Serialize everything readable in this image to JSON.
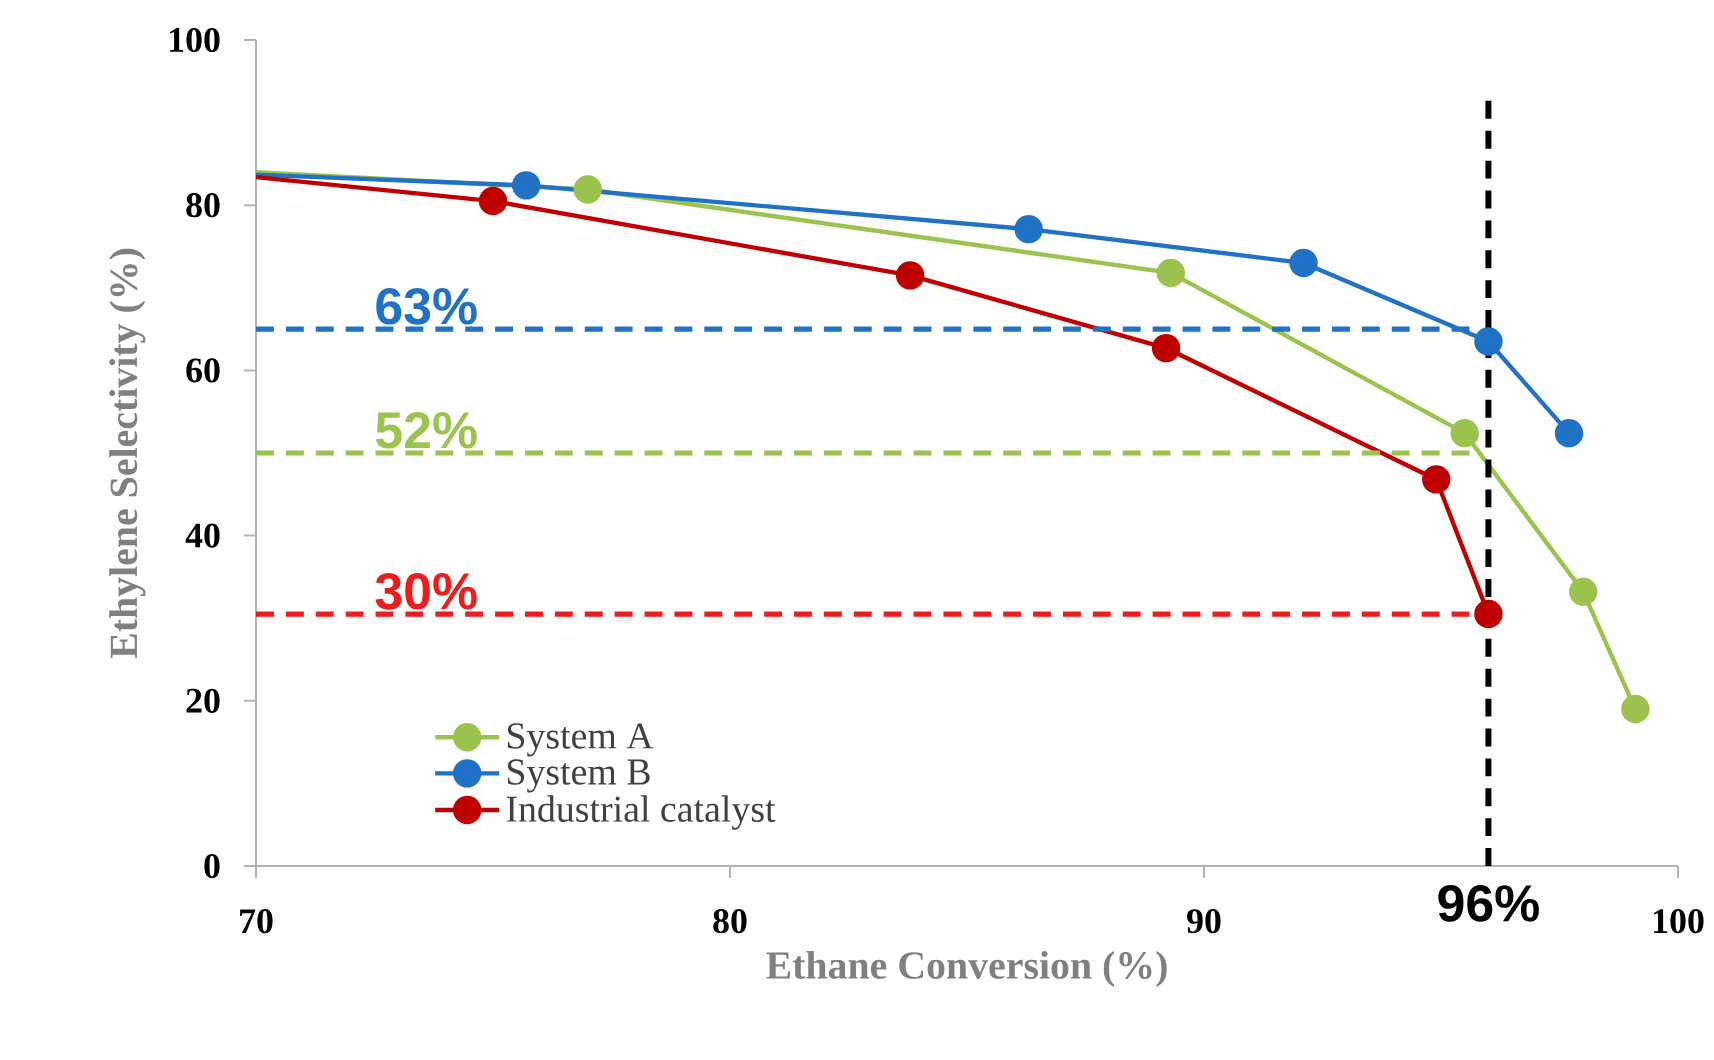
{
  "chart_data": {
    "type": "line",
    "xlabel": "Ethane Conversion (%)",
    "ylabel": "Ethylene Selectivity (%)",
    "xlim": [
      70,
      100
    ],
    "ylim": [
      0,
      100
    ],
    "xticks": [
      70,
      80,
      90,
      100
    ],
    "yticks": [
      0,
      20,
      40,
      60,
      80,
      100
    ],
    "marker": "circle",
    "legend": "bottom left",
    "grid": false,
    "series": [
      {
        "name": "System A",
        "color": "#9bc34d",
        "x": [
          70,
          77.0,
          89.3,
          95.5,
          98.0,
          99.1
        ],
        "values": [
          84,
          81.9,
          71.8,
          52.4,
          33.2,
          19.0
        ]
      },
      {
        "name": "System B",
        "color": "#1f72c6",
        "x": [
          70,
          75.7,
          86.3,
          92.1,
          96.0,
          97.7
        ],
        "values": [
          83.7,
          82.4,
          77.1,
          73.0,
          63.5,
          52.4
        ]
      },
      {
        "name": "Industrial catalyst",
        "color": "#c00000",
        "x": [
          70,
          75.0,
          83.8,
          89.2,
          94.9,
          96.0
        ],
        "values": [
          83.4,
          80.5,
          71.5,
          62.7,
          46.8,
          30.5
        ]
      },
      {
        "color": "#1f72c6",
        "x": [
          70,
          95.6
        ],
        "values": [
          65,
          65
        ],
        "line_style": "dashed",
        "marker": "none"
      },
      {
        "color": "#9bc34d",
        "x": [
          70,
          95.6
        ],
        "values": [
          50,
          50
        ],
        "line_style": "dashed",
        "marker": "none"
      },
      {
        "color": "#ee1c1c",
        "x": [
          70,
          95.6
        ],
        "values": [
          30.5,
          30.5
        ],
        "line_style": "dashed",
        "marker": "none"
      }
    ],
    "ref_lines": [
      {
        "axis": "x",
        "value": 96,
        "label": "96%",
        "color": "#000000",
        "line_style": "dashed"
      }
    ],
    "annotations": [
      "63%",
      "52%",
      "30%"
    ]
  }
}
